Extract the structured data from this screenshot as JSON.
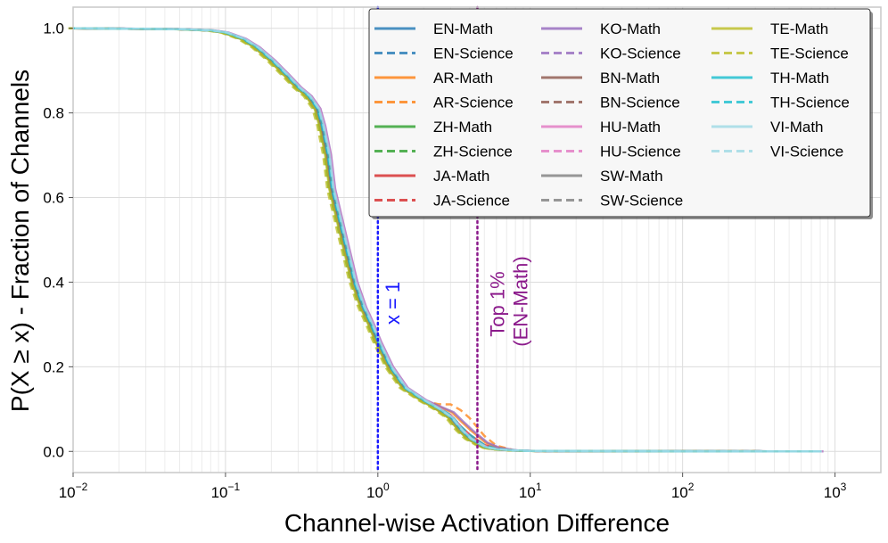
{
  "chart_data": {
    "type": "line",
    "xscale": "log",
    "xlim": [
      0.01,
      2000
    ],
    "ylim": [
      -0.05,
      1.05
    ],
    "xlabel": "Channel-wise Activation Difference",
    "ylabel": "P(X ≥ x) - Fraction of Channels",
    "x_ticks": [
      {
        "value": 0.01,
        "base": "10",
        "exp": "−2"
      },
      {
        "value": 0.1,
        "base": "10",
        "exp": "−1"
      },
      {
        "value": 1,
        "base": "10",
        "exp": "0"
      },
      {
        "value": 10,
        "base": "10",
        "exp": "1"
      },
      {
        "value": 100,
        "base": "10",
        "exp": "2"
      },
      {
        "value": 1000,
        "base": "10",
        "exp": "3"
      }
    ],
    "y_ticks": [
      {
        "value": 0.0,
        "label": "0.0"
      },
      {
        "value": 0.2,
        "label": "0.2"
      },
      {
        "value": 0.4,
        "label": "0.4"
      },
      {
        "value": 0.6,
        "label": "0.6"
      },
      {
        "value": 0.8,
        "label": "0.8"
      },
      {
        "value": 1.0,
        "label": "1.0"
      }
    ],
    "grid": true,
    "legend": {
      "position": "top-right",
      "columns": 3
    },
    "base_curve": {
      "x": [
        0.01,
        0.05,
        0.08,
        0.1,
        0.13,
        0.16,
        0.2,
        0.25,
        0.3,
        0.35,
        0.4,
        0.43,
        0.47,
        0.5,
        0.6,
        0.7,
        0.8,
        0.9,
        1.0,
        1.2,
        1.5,
        2.0,
        2.5,
        3.0,
        3.5,
        4.0,
        5.0,
        6.0,
        8.0,
        10.0,
        50.0,
        100.0,
        400.0,
        800.0
      ],
      "y": [
        1.0,
        0.998,
        0.995,
        0.99,
        0.975,
        0.955,
        0.925,
        0.89,
        0.86,
        0.84,
        0.81,
        0.77,
        0.7,
        0.62,
        0.5,
        0.4,
        0.34,
        0.3,
        0.26,
        0.2,
        0.15,
        0.12,
        0.1,
        0.08,
        0.05,
        0.03,
        0.01,
        0.005,
        0.002,
        0.001,
        0.0005,
        0.0003,
        0.0002,
        0.0
      ]
    },
    "series": [
      {
        "name": "EN-Math",
        "color": "#1f77b4",
        "dash": "solid",
        "shift": 1.0,
        "bump": 0.0
      },
      {
        "name": "EN-Science",
        "color": "#1f77b4",
        "dash": "dashed",
        "shift": 0.98,
        "bump": 0.01
      },
      {
        "name": "AR-Math",
        "color": "#ff7f0e",
        "dash": "solid",
        "shift": 1.02,
        "bump": 0.02
      },
      {
        "name": "AR-Science",
        "color": "#ff7f0e",
        "dash": "dashed",
        "shift": 1.0,
        "bump": 0.05
      },
      {
        "name": "ZH-Math",
        "color": "#2ca02c",
        "dash": "solid",
        "shift": 0.97,
        "bump": 0.0
      },
      {
        "name": "ZH-Science",
        "color": "#2ca02c",
        "dash": "dashed",
        "shift": 0.95,
        "bump": 0.0
      },
      {
        "name": "JA-Math",
        "color": "#d62728",
        "dash": "solid",
        "shift": 1.0,
        "bump": 0.01
      },
      {
        "name": "JA-Science",
        "color": "#d62728",
        "dash": "dashed",
        "shift": 0.99,
        "bump": 0.0
      },
      {
        "name": "KO-Math",
        "color": "#9467bd",
        "dash": "solid",
        "shift": 1.05,
        "bump": 0.02
      },
      {
        "name": "KO-Science",
        "color": "#9467bd",
        "dash": "dashed",
        "shift": 1.02,
        "bump": 0.0
      },
      {
        "name": "BN-Math",
        "color": "#8c564b",
        "dash": "solid",
        "shift": 0.98,
        "bump": 0.0
      },
      {
        "name": "BN-Science",
        "color": "#8c564b",
        "dash": "dashed",
        "shift": 0.97,
        "bump": 0.0
      },
      {
        "name": "HU-Math",
        "color": "#e377c2",
        "dash": "solid",
        "shift": 1.04,
        "bump": 0.0
      },
      {
        "name": "HU-Science",
        "color": "#e377c2",
        "dash": "dashed",
        "shift": 1.0,
        "bump": 0.0
      },
      {
        "name": "SW-Math",
        "color": "#7f7f7f",
        "dash": "solid",
        "shift": 0.99,
        "bump": 0.0
      },
      {
        "name": "SW-Science",
        "color": "#7f7f7f",
        "dash": "dashed",
        "shift": 0.98,
        "bump": 0.0
      },
      {
        "name": "TE-Math",
        "color": "#bcbd22",
        "dash": "solid",
        "shift": 0.96,
        "bump": 0.0
      },
      {
        "name": "TE-Science",
        "color": "#bcbd22",
        "dash": "dashed",
        "shift": 0.93,
        "bump": 0.0
      },
      {
        "name": "TH-Math",
        "color": "#17becf",
        "dash": "solid",
        "shift": 1.01,
        "bump": 0.0
      },
      {
        "name": "TH-Science",
        "color": "#17becf",
        "dash": "dashed",
        "shift": 1.0,
        "bump": 0.01
      },
      {
        "name": "VI-Math",
        "color": "#9edae5",
        "dash": "solid",
        "shift": 1.03,
        "bump": 0.0
      },
      {
        "name": "VI-Science",
        "color": "#9edae5",
        "dash": "dashed",
        "shift": 1.02,
        "bump": 0.0
      }
    ],
    "vlines": [
      {
        "x": 1.0,
        "color": "#1a1aff",
        "label": "x = 1"
      },
      {
        "x": 4.5,
        "color": "#8b1a8b",
        "label_line1": "Top 1%",
        "label_line2": "(EN-Math)"
      }
    ]
  }
}
